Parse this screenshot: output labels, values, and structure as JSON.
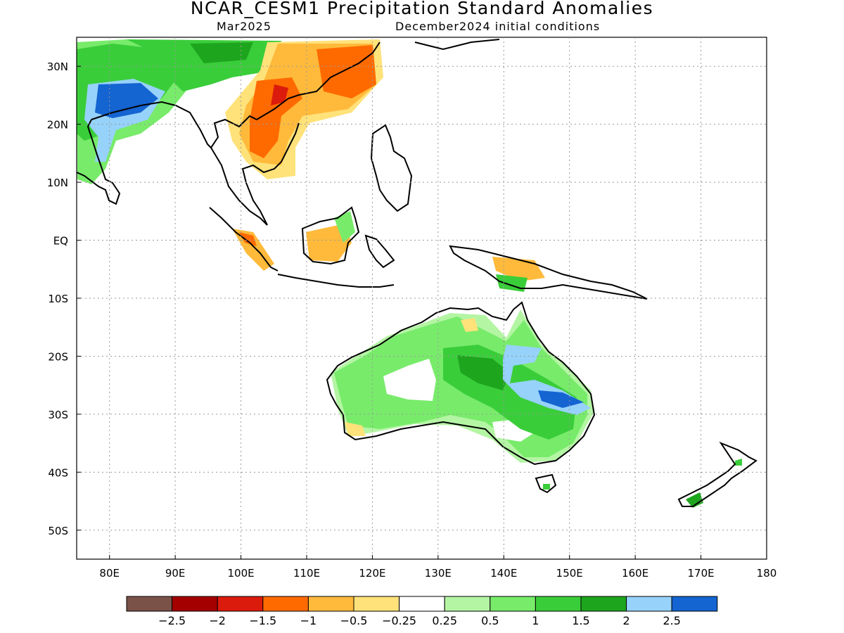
{
  "title": "NCAR_CESM1 Precipitation Standard Anomalies",
  "subtitle_left": "Mar2025",
  "subtitle_right": "December2024 initial conditions",
  "map": {
    "lon_range": [
      75,
      180
    ],
    "lat_range": [
      -55,
      35
    ],
    "lon_ticks": [
      "80E",
      "90E",
      "100E",
      "110E",
      "120E",
      "130E",
      "140E",
      "150E",
      "160E",
      "170E",
      "180"
    ],
    "lat_ticks": [
      "30N",
      "20N",
      "10N",
      "EQ",
      "10S",
      "20S",
      "30S",
      "40S",
      "50S"
    ],
    "grid": "dotted"
  },
  "legend": {
    "colors": [
      "#7a5248",
      "#a50000",
      "#db1b0c",
      "#ff6a00",
      "#ffba3b",
      "#ffe27a",
      "#ffffff",
      "#b4f5a4",
      "#78eb6b",
      "#3acd3a",
      "#1ea51e",
      "#96d2fa",
      "#1464d2"
    ],
    "labels": [
      "−2.5",
      "−2",
      "−1.5",
      "−1",
      "−0.5",
      "−0.25",
      "0.25",
      "0.5",
      "1",
      "1.5",
      "2",
      "2.5"
    ]
  },
  "regions": [
    {
      "name": "india-wet",
      "color": "#78eb6b",
      "level": "0.5 to 1"
    },
    {
      "name": "india-very-wet",
      "color": "#1464d2",
      "level": "above 2.5"
    },
    {
      "name": "south-china-dry",
      "color": "#ff6a00",
      "level": "-1.5 to -1"
    },
    {
      "name": "indochina-dry",
      "color": "#ffba3b",
      "level": "-1 to -0.5"
    },
    {
      "name": "borneo-dry",
      "color": "#ffba3b",
      "level": "-1 to -0.5"
    },
    {
      "name": "australia-wet",
      "color": "#78eb6b",
      "level": "0.5 to 1"
    },
    {
      "name": "east-australia-very-wet",
      "color": "#96d2fa",
      "level": "2 to 2.5"
    }
  ]
}
